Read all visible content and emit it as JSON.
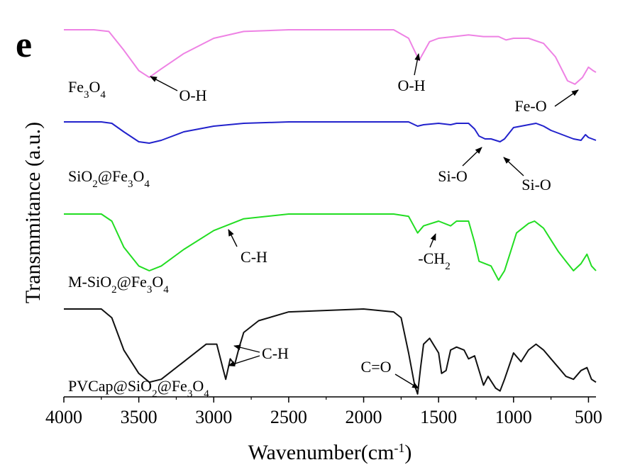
{
  "chart_data": {
    "type": "line",
    "panel_label": "e",
    "xlabel": "Wavenumber(cm-1)",
    "xlabel_parts": {
      "main": "Wavenumber(cm",
      "sup": "-1",
      "close": ")"
    },
    "ylabel": "Transmmitance (a.u.)",
    "xlim": [
      4000,
      450
    ],
    "x_reversed": true,
    "x_ticks": [
      4000,
      3500,
      3000,
      2500,
      2000,
      1500,
      1000,
      500
    ],
    "grid": false,
    "series": [
      {
        "name": "Fe3O4",
        "label_parts": [
          {
            "t": "Fe"
          },
          {
            "t": "3",
            "sub": true
          },
          {
            "t": "O"
          },
          {
            "t": "4",
            "sub": true
          }
        ],
        "color": "#ee82e4",
        "points": [
          [
            4000,
            1.0
          ],
          [
            3800,
            1.0
          ],
          [
            3700,
            0.99
          ],
          [
            3600,
            0.88
          ],
          [
            3500,
            0.76
          ],
          [
            3430,
            0.72
          ],
          [
            3350,
            0.77
          ],
          [
            3200,
            0.86
          ],
          [
            3000,
            0.95
          ],
          [
            2800,
            0.99
          ],
          [
            2500,
            1.0
          ],
          [
            2000,
            1.0
          ],
          [
            1800,
            1.0
          ],
          [
            1700,
            0.95
          ],
          [
            1630,
            0.82
          ],
          [
            1560,
            0.93
          ],
          [
            1500,
            0.95
          ],
          [
            1400,
            0.96
          ],
          [
            1300,
            0.97
          ],
          [
            1200,
            0.96
          ],
          [
            1100,
            0.96
          ],
          [
            1050,
            0.94
          ],
          [
            1000,
            0.95
          ],
          [
            900,
            0.95
          ],
          [
            800,
            0.92
          ],
          [
            720,
            0.84
          ],
          [
            640,
            0.7
          ],
          [
            590,
            0.68
          ],
          [
            540,
            0.72
          ],
          [
            500,
            0.78
          ],
          [
            470,
            0.76
          ],
          [
            450,
            0.75
          ]
        ]
      },
      {
        "name": "SiO2@Fe3O4",
        "label_parts": [
          {
            "t": "SiO"
          },
          {
            "t": "2",
            "sub": true
          },
          {
            "t": "@Fe"
          },
          {
            "t": "3",
            "sub": true
          },
          {
            "t": "O"
          },
          {
            "t": "4",
            "sub": true
          }
        ],
        "color": "#2222cc",
        "points": [
          [
            4000,
            1.0
          ],
          [
            3750,
            1.0
          ],
          [
            3680,
            0.99
          ],
          [
            3600,
            0.93
          ],
          [
            3500,
            0.86
          ],
          [
            3430,
            0.85
          ],
          [
            3350,
            0.87
          ],
          [
            3200,
            0.93
          ],
          [
            3000,
            0.97
          ],
          [
            2800,
            0.99
          ],
          [
            2500,
            1.0
          ],
          [
            1800,
            1.0
          ],
          [
            1700,
            1.0
          ],
          [
            1640,
            0.97
          ],
          [
            1600,
            0.98
          ],
          [
            1500,
            0.99
          ],
          [
            1420,
            0.98
          ],
          [
            1380,
            0.99
          ],
          [
            1300,
            0.99
          ],
          [
            1260,
            0.95
          ],
          [
            1230,
            0.9
          ],
          [
            1190,
            0.88
          ],
          [
            1150,
            0.88
          ],
          [
            1120,
            0.87
          ],
          [
            1090,
            0.86
          ],
          [
            1060,
            0.88
          ],
          [
            1000,
            0.96
          ],
          [
            950,
            0.97
          ],
          [
            900,
            0.98
          ],
          [
            850,
            0.99
          ],
          [
            800,
            0.97
          ],
          [
            750,
            0.94
          ],
          [
            700,
            0.92
          ],
          [
            650,
            0.9
          ],
          [
            600,
            0.88
          ],
          [
            550,
            0.87
          ],
          [
            520,
            0.91
          ],
          [
            500,
            0.89
          ],
          [
            450,
            0.87
          ]
        ]
      },
      {
        "name": "M-SiO2@Fe3O4",
        "label_parts": [
          {
            "t": "M-SiO"
          },
          {
            "t": "2",
            "sub": true
          },
          {
            "t": "@Fe"
          },
          {
            "t": "3",
            "sub": true
          },
          {
            "t": "O"
          },
          {
            "t": "4",
            "sub": true
          }
        ],
        "color": "#22dd22",
        "points": [
          [
            4000,
            1.0
          ],
          [
            3750,
            1.0
          ],
          [
            3680,
            0.97
          ],
          [
            3600,
            0.86
          ],
          [
            3500,
            0.78
          ],
          [
            3430,
            0.76
          ],
          [
            3350,
            0.78
          ],
          [
            3200,
            0.85
          ],
          [
            3000,
            0.93
          ],
          [
            2800,
            0.98
          ],
          [
            2500,
            1.0
          ],
          [
            1800,
            1.0
          ],
          [
            1700,
            0.99
          ],
          [
            1640,
            0.92
          ],
          [
            1600,
            0.95
          ],
          [
            1500,
            0.97
          ],
          [
            1420,
            0.95
          ],
          [
            1380,
            0.97
          ],
          [
            1300,
            0.97
          ],
          [
            1260,
            0.88
          ],
          [
            1230,
            0.8
          ],
          [
            1150,
            0.78
          ],
          [
            1100,
            0.72
          ],
          [
            1060,
            0.76
          ],
          [
            1020,
            0.84
          ],
          [
            980,
            0.92
          ],
          [
            900,
            0.96
          ],
          [
            860,
            0.97
          ],
          [
            800,
            0.94
          ],
          [
            750,
            0.89
          ],
          [
            700,
            0.84
          ],
          [
            650,
            0.8
          ],
          [
            600,
            0.76
          ],
          [
            550,
            0.79
          ],
          [
            510,
            0.83
          ],
          [
            480,
            0.78
          ],
          [
            450,
            0.76
          ]
        ]
      },
      {
        "name": "PVCap@SiO2@Fe3O4",
        "label_parts": [
          {
            "t": "PVCap@SiO"
          },
          {
            "t": "2",
            "sub": true
          },
          {
            "t": "@Fe"
          },
          {
            "t": "3",
            "sub": true
          },
          {
            "t": "O"
          },
          {
            "t": "4",
            "sub": true
          }
        ],
        "color": "#111111",
        "points": [
          [
            4000,
            1.0
          ],
          [
            3750,
            1.0
          ],
          [
            3680,
            0.97
          ],
          [
            3600,
            0.86
          ],
          [
            3500,
            0.78
          ],
          [
            3430,
            0.75
          ],
          [
            3350,
            0.76
          ],
          [
            3200,
            0.82
          ],
          [
            3050,
            0.88
          ],
          [
            2980,
            0.88
          ],
          [
            2940,
            0.8
          ],
          [
            2920,
            0.76
          ],
          [
            2890,
            0.83
          ],
          [
            2860,
            0.81
          ],
          [
            2830,
            0.87
          ],
          [
            2800,
            0.92
          ],
          [
            2700,
            0.96
          ],
          [
            2500,
            0.99
          ],
          [
            2000,
            1.0
          ],
          [
            1800,
            0.99
          ],
          [
            1750,
            0.97
          ],
          [
            1700,
            0.85
          ],
          [
            1660,
            0.74
          ],
          [
            1640,
            0.71
          ],
          [
            1620,
            0.8
          ],
          [
            1600,
            0.88
          ],
          [
            1560,
            0.9
          ],
          [
            1500,
            0.85
          ],
          [
            1480,
            0.78
          ],
          [
            1450,
            0.79
          ],
          [
            1420,
            0.86
          ],
          [
            1380,
            0.87
          ],
          [
            1330,
            0.86
          ],
          [
            1300,
            0.83
          ],
          [
            1260,
            0.84
          ],
          [
            1200,
            0.74
          ],
          [
            1170,
            0.77
          ],
          [
            1120,
            0.73
          ],
          [
            1090,
            0.72
          ],
          [
            1060,
            0.76
          ],
          [
            1000,
            0.85
          ],
          [
            950,
            0.82
          ],
          [
            900,
            0.86
          ],
          [
            850,
            0.88
          ],
          [
            800,
            0.86
          ],
          [
            750,
            0.83
          ],
          [
            700,
            0.8
          ],
          [
            650,
            0.77
          ],
          [
            600,
            0.76
          ],
          [
            550,
            0.79
          ],
          [
            510,
            0.8
          ],
          [
            480,
            0.76
          ],
          [
            450,
            0.75
          ]
        ]
      }
    ],
    "annotations": [
      {
        "name": "fe3o4-oh-high",
        "parts": [
          {
            "t": "O-H"
          }
        ]
      },
      {
        "name": "fe3o4-oh-low",
        "parts": [
          {
            "t": "O-H"
          }
        ]
      },
      {
        "name": "fe3o4-feo",
        "parts": [
          {
            "t": "Fe-O"
          }
        ]
      },
      {
        "name": "sio2-sio-left",
        "parts": [
          {
            "t": "Si-O"
          }
        ]
      },
      {
        "name": "sio2-sio-right",
        "parts": [
          {
            "t": "Si-O"
          }
        ]
      },
      {
        "name": "msio2-ch",
        "parts": [
          {
            "t": "C-H"
          }
        ]
      },
      {
        "name": "msio2-ch2",
        "parts": [
          {
            "t": "-CH"
          },
          {
            "t": "2",
            "sub": true
          }
        ]
      },
      {
        "name": "pvcap-ch",
        "parts": [
          {
            "t": "C-H"
          }
        ]
      },
      {
        "name": "pvcap-co",
        "parts": [
          {
            "t": "C=O"
          }
        ]
      }
    ]
  }
}
